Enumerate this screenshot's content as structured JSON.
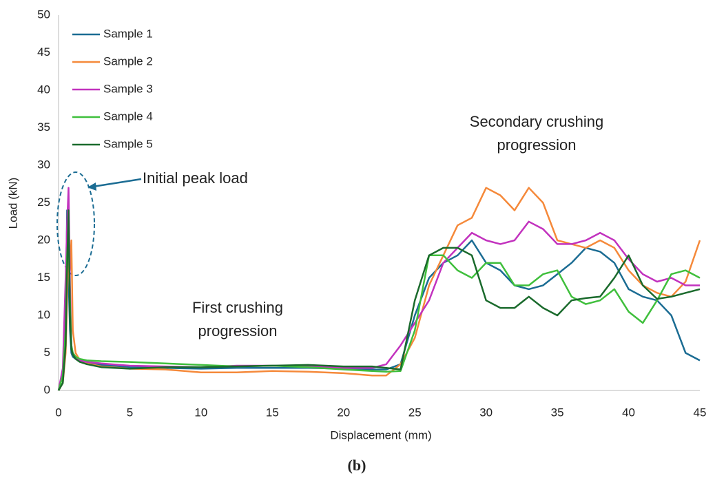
{
  "chart_data": {
    "type": "line",
    "xlabel": "Displacement (mm)",
    "ylabel": "Load (kN)",
    "caption": "(b)",
    "annotations": [
      [
        "Initial peak load"
      ],
      [
        "Secondary crushing",
        "progression"
      ],
      [
        "First crushing",
        "progression"
      ]
    ],
    "xlim": [
      0,
      45
    ],
    "xticks": [
      0,
      5,
      10,
      15,
      20,
      25,
      30,
      35,
      40,
      45
    ],
    "ylim": [
      0,
      50
    ],
    "yticks": [
      0,
      5,
      10,
      15,
      20,
      25,
      30,
      35,
      40,
      45,
      50
    ],
    "legend": "upper-left",
    "x": [
      0,
      0.3,
      0.5,
      0.6,
      0.7,
      0.8,
      0.9,
      1,
      1.2,
      1.5,
      2,
      3,
      5,
      7.5,
      10,
      12.5,
      15,
      17.5,
      20,
      22,
      23,
      24,
      25,
      26,
      27,
      28,
      29,
      30,
      31,
      32,
      33,
      34,
      35,
      36,
      37,
      38,
      39,
      40,
      41,
      42,
      43,
      44,
      45
    ],
    "series": [
      {
        "name": "Sample 1",
        "color": "#1b6c93",
        "values": [
          0,
          2,
          10,
          24,
          15,
          8,
          5,
          4.5,
          4.2,
          4,
          3.8,
          3.4,
          3.1,
          3,
          2.9,
          3,
          3,
          3,
          2.9,
          2.8,
          2.8,
          3.5,
          10,
          15,
          17,
          18,
          20,
          17,
          16,
          14,
          13.5,
          14,
          15.5,
          17,
          19,
          18.5,
          17,
          13.5,
          12.5,
          12,
          10,
          5,
          4
        ]
      },
      {
        "name": "Sample 2",
        "color": "#f5893a",
        "values": [
          0,
          1,
          5,
          12,
          20,
          16,
          20,
          8,
          5,
          4,
          3.6,
          3.2,
          2.9,
          2.8,
          2.4,
          2.4,
          2.6,
          2.5,
          2.3,
          2,
          2,
          3.5,
          7,
          14,
          18,
          22,
          23,
          27,
          26,
          24,
          27,
          25,
          20,
          19.5,
          19,
          20,
          19,
          16,
          14,
          13,
          12.5,
          14.5,
          20
        ]
      },
      {
        "name": "Sample 3",
        "color": "#c232be",
        "values": [
          0,
          3,
          15,
          22,
          27,
          14,
          6,
          5,
          4.5,
          4,
          3.8,
          3.6,
          3.3,
          3.2,
          3.1,
          3.3,
          3.3,
          3.2,
          3,
          3,
          3.5,
          6,
          9,
          12,
          17,
          19,
          21,
          20,
          19.5,
          20,
          22.5,
          21.5,
          19.5,
          19.5,
          20,
          21,
          20,
          17.5,
          15.5,
          14.5,
          15,
          14,
          14
        ]
      },
      {
        "name": "Sample 4",
        "color": "#3fbf3c",
        "values": [
          0,
          2,
          8,
          18,
          21,
          12,
          6,
          5,
          4.5,
          4.2,
          4,
          3.9,
          3.8,
          3.6,
          3.4,
          3.2,
          3.3,
          3.1,
          2.8,
          2.6,
          2.5,
          2.6,
          8,
          18,
          18,
          16,
          15,
          17,
          17,
          14,
          14,
          15.5,
          16,
          12.5,
          11.5,
          12,
          13.5,
          10.5,
          9,
          12,
          15.5,
          16,
          15
        ]
      },
      {
        "name": "Sample 5",
        "color": "#1a6a2c",
        "values": [
          0,
          1,
          6,
          16,
          24,
          10,
          5.5,
          4.8,
          4.2,
          3.8,
          3.5,
          3.1,
          2.9,
          3.1,
          3.1,
          3.2,
          3.3,
          3.4,
          3.2,
          3.2,
          3,
          2.8,
          12,
          18,
          19,
          19,
          18,
          12,
          11,
          11,
          12.5,
          11,
          10,
          12,
          12.3,
          12.5,
          15,
          18,
          14,
          12.2,
          12.5,
          13,
          13.5
        ]
      }
    ]
  }
}
